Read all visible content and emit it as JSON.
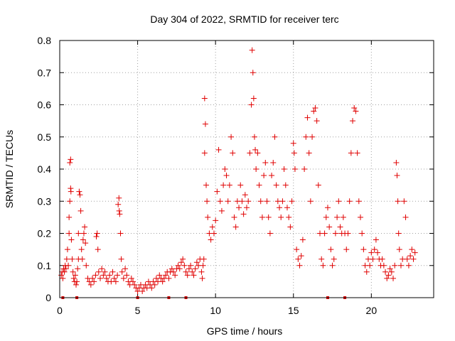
{
  "chart_data": {
    "type": "scatter",
    "title": "Day 304 of 2022, SRMTID for receiver terc",
    "xlabel": "GPS time / hours",
    "ylabel": "SRMTID / TECUs",
    "xlim": [
      0,
      24
    ],
    "ylim": [
      0,
      0.8
    ],
    "xticks": [
      0,
      5,
      10,
      15,
      20
    ],
    "yticks": [
      0,
      0.1,
      0.2,
      0.3,
      0.4,
      0.5,
      0.6,
      0.7,
      0.8
    ],
    "xtick_labels": [
      "0",
      "5",
      "10",
      "15",
      "20"
    ],
    "ytick_labels": [
      "0",
      "0.1",
      "0.2",
      "0.3",
      "0.4",
      "0.5",
      "0.6",
      "0.7",
      "0.8"
    ],
    "grid": true,
    "marker": "+",
    "color": "#e00000",
    "series": [
      {
        "name": "SRMTID",
        "points": [
          [
            0.1,
            0.07
          ],
          [
            0.15,
            0.08
          ],
          [
            0.2,
            0.06
          ],
          [
            0.25,
            0.09
          ],
          [
            0.3,
            0.08
          ],
          [
            0.35,
            0.1
          ],
          [
            0.4,
            0.09
          ],
          [
            0.45,
            0.12
          ],
          [
            0.5,
            0.15
          ],
          [
            0.55,
            0.1
          ],
          [
            0.6,
            0.2
          ],
          [
            0.6,
            0.25
          ],
          [
            0.65,
            0.3
          ],
          [
            0.65,
            0.42
          ],
          [
            0.7,
            0.43
          ],
          [
            0.7,
            0.34
          ],
          [
            0.72,
            0.33
          ],
          [
            0.75,
            0.18
          ],
          [
            0.8,
            0.12
          ],
          [
            0.85,
            0.08
          ],
          [
            0.9,
            0.06
          ],
          [
            0.95,
            0.05
          ],
          [
            1.0,
            0.07
          ],
          [
            1.05,
            0.04
          ],
          [
            1.1,
            0.05
          ],
          [
            1.15,
            0.09
          ],
          [
            1.2,
            0.12
          ],
          [
            1.2,
            0.2
          ],
          [
            1.25,
            0.33
          ],
          [
            1.3,
            0.32
          ],
          [
            1.35,
            0.27
          ],
          [
            1.4,
            0.15
          ],
          [
            1.45,
            0.12
          ],
          [
            1.5,
            0.18
          ],
          [
            1.55,
            0.2
          ],
          [
            1.6,
            0.22
          ],
          [
            1.65,
            0.17
          ],
          [
            1.7,
            0.1
          ],
          [
            1.8,
            0.06
          ],
          [
            1.9,
            0.05
          ],
          [
            2.0,
            0.04
          ],
          [
            2.1,
            0.06
          ],
          [
            2.2,
            0.05
          ],
          [
            2.3,
            0.07
          ],
          [
            2.35,
            0.19
          ],
          [
            2.4,
            0.2
          ],
          [
            2.45,
            0.15
          ],
          [
            2.5,
            0.08
          ],
          [
            2.6,
            0.06
          ],
          [
            2.7,
            0.09
          ],
          [
            2.8,
            0.07
          ],
          [
            2.9,
            0.08
          ],
          [
            3.0,
            0.06
          ],
          [
            3.1,
            0.05
          ],
          [
            3.2,
            0.07
          ],
          [
            3.3,
            0.05
          ],
          [
            3.4,
            0.08
          ],
          [
            3.5,
            0.06
          ],
          [
            3.6,
            0.05
          ],
          [
            3.7,
            0.07
          ],
          [
            3.75,
            0.29
          ],
          [
            3.8,
            0.31
          ],
          [
            3.82,
            0.27
          ],
          [
            3.85,
            0.26
          ],
          [
            3.9,
            0.2
          ],
          [
            3.95,
            0.12
          ],
          [
            4.0,
            0.08
          ],
          [
            4.1,
            0.06
          ],
          [
            4.2,
            0.09
          ],
          [
            4.3,
            0.07
          ],
          [
            4.4,
            0.05
          ],
          [
            4.5,
            0.04
          ],
          [
            4.6,
            0.06
          ],
          [
            4.7,
            0.05
          ],
          [
            4.8,
            0.04
          ],
          [
            4.9,
            0.03
          ],
          [
            5.0,
            0.02
          ],
          [
            5.1,
            0.03
          ],
          [
            5.2,
            0.04
          ],
          [
            5.3,
            0.02
          ],
          [
            5.4,
            0.03
          ],
          [
            5.5,
            0.04
          ],
          [
            5.6,
            0.03
          ],
          [
            5.7,
            0.05
          ],
          [
            5.8,
            0.04
          ],
          [
            5.9,
            0.03
          ],
          [
            6.0,
            0.05
          ],
          [
            6.1,
            0.04
          ],
          [
            6.2,
            0.06
          ],
          [
            6.3,
            0.05
          ],
          [
            6.4,
            0.07
          ],
          [
            6.5,
            0.06
          ],
          [
            6.6,
            0.05
          ],
          [
            6.7,
            0.06
          ],
          [
            6.8,
            0.07
          ],
          [
            6.9,
            0.08
          ],
          [
            7.0,
            0.06
          ],
          [
            7.1,
            0.08
          ],
          [
            7.2,
            0.09
          ],
          [
            7.3,
            0.08
          ],
          [
            7.4,
            0.07
          ],
          [
            7.5,
            0.09
          ],
          [
            7.6,
            0.1
          ],
          [
            7.7,
            0.09
          ],
          [
            7.8,
            0.11
          ],
          [
            7.9,
            0.12
          ],
          [
            8.0,
            0.1
          ],
          [
            8.1,
            0.08
          ],
          [
            8.2,
            0.07
          ],
          [
            8.3,
            0.09
          ],
          [
            8.4,
            0.1
          ],
          [
            8.5,
            0.08
          ],
          [
            8.6,
            0.07
          ],
          [
            8.7,
            0.09
          ],
          [
            8.8,
            0.11
          ],
          [
            8.9,
            0.1
          ],
          [
            9.0,
            0.12
          ],
          [
            9.1,
            0.08
          ],
          [
            9.15,
            0.06
          ],
          [
            9.2,
            0.1
          ],
          [
            9.25,
            0.12
          ],
          [
            9.3,
            0.45
          ],
          [
            9.3,
            0.62
          ],
          [
            9.35,
            0.54
          ],
          [
            9.4,
            0.35
          ],
          [
            9.45,
            0.3
          ],
          [
            9.5,
            0.25
          ],
          [
            9.6,
            0.2
          ],
          [
            9.7,
            0.18
          ],
          [
            9.8,
            0.22
          ],
          [
            9.9,
            0.2
          ],
          [
            10.0,
            0.24
          ],
          [
            10.1,
            0.33
          ],
          [
            10.2,
            0.46
          ],
          [
            10.3,
            0.3
          ],
          [
            10.4,
            0.27
          ],
          [
            10.5,
            0.35
          ],
          [
            10.6,
            0.4
          ],
          [
            10.7,
            0.38
          ],
          [
            10.8,
            0.3
          ],
          [
            10.9,
            0.35
          ],
          [
            11.0,
            0.5
          ],
          [
            11.1,
            0.45
          ],
          [
            11.2,
            0.25
          ],
          [
            11.3,
            0.22
          ],
          [
            11.4,
            0.3
          ],
          [
            11.5,
            0.28
          ],
          [
            11.6,
            0.35
          ],
          [
            11.7,
            0.3
          ],
          [
            11.8,
            0.26
          ],
          [
            11.9,
            0.32
          ],
          [
            12.0,
            0.28
          ],
          [
            12.1,
            0.3
          ],
          [
            12.2,
            0.45
          ],
          [
            12.3,
            0.6
          ],
          [
            12.35,
            0.77
          ],
          [
            12.4,
            0.7
          ],
          [
            12.45,
            0.62
          ],
          [
            12.5,
            0.5
          ],
          [
            12.55,
            0.46
          ],
          [
            12.6,
            0.4
          ],
          [
            12.7,
            0.45
          ],
          [
            12.8,
            0.35
          ],
          [
            12.9,
            0.3
          ],
          [
            13.0,
            0.25
          ],
          [
            13.1,
            0.38
          ],
          [
            13.2,
            0.42
          ],
          [
            13.3,
            0.3
          ],
          [
            13.4,
            0.25
          ],
          [
            13.5,
            0.2
          ],
          [
            13.6,
            0.38
          ],
          [
            13.7,
            0.42
          ],
          [
            13.8,
            0.5
          ],
          [
            13.9,
            0.35
          ],
          [
            14.0,
            0.3
          ],
          [
            14.1,
            0.28
          ],
          [
            14.2,
            0.25
          ],
          [
            14.3,
            0.3
          ],
          [
            14.4,
            0.4
          ],
          [
            14.5,
            0.35
          ],
          [
            14.6,
            0.28
          ],
          [
            14.7,
            0.25
          ],
          [
            14.8,
            0.22
          ],
          [
            14.9,
            0.3
          ],
          [
            15.0,
            0.48
          ],
          [
            15.05,
            0.45
          ],
          [
            15.1,
            0.4
          ],
          [
            15.2,
            0.15
          ],
          [
            15.3,
            0.12
          ],
          [
            15.4,
            0.1
          ],
          [
            15.5,
            0.13
          ],
          [
            15.6,
            0.18
          ],
          [
            15.7,
            0.4
          ],
          [
            15.8,
            0.5
          ],
          [
            15.9,
            0.56
          ],
          [
            16.0,
            0.45
          ],
          [
            16.1,
            0.3
          ],
          [
            16.2,
            0.5
          ],
          [
            16.3,
            0.58
          ],
          [
            16.4,
            0.59
          ],
          [
            16.5,
            0.55
          ],
          [
            16.6,
            0.35
          ],
          [
            16.7,
            0.2
          ],
          [
            16.8,
            0.12
          ],
          [
            16.9,
            0.1
          ],
          [
            17.0,
            0.2
          ],
          [
            17.1,
            0.25
          ],
          [
            17.2,
            0.28
          ],
          [
            17.3,
            0.22
          ],
          [
            17.4,
            0.15
          ],
          [
            17.5,
            0.1
          ],
          [
            17.6,
            0.12
          ],
          [
            17.7,
            0.2
          ],
          [
            17.8,
            0.25
          ],
          [
            17.9,
            0.3
          ],
          [
            18.0,
            0.22
          ],
          [
            18.1,
            0.2
          ],
          [
            18.2,
            0.25
          ],
          [
            18.3,
            0.2
          ],
          [
            18.4,
            0.15
          ],
          [
            18.5,
            0.2
          ],
          [
            18.6,
            0.3
          ],
          [
            18.7,
            0.45
          ],
          [
            18.8,
            0.55
          ],
          [
            18.9,
            0.59
          ],
          [
            19.0,
            0.58
          ],
          [
            19.1,
            0.45
          ],
          [
            19.2,
            0.3
          ],
          [
            19.3,
            0.25
          ],
          [
            19.4,
            0.2
          ],
          [
            19.5,
            0.15
          ],
          [
            19.6,
            0.1
          ],
          [
            19.7,
            0.08
          ],
          [
            19.8,
            0.12
          ],
          [
            19.9,
            0.1
          ],
          [
            20.0,
            0.14
          ],
          [
            20.1,
            0.12
          ],
          [
            20.2,
            0.15
          ],
          [
            20.3,
            0.18
          ],
          [
            20.4,
            0.14
          ],
          [
            20.5,
            0.12
          ],
          [
            20.6,
            0.1
          ],
          [
            20.7,
            0.12
          ],
          [
            20.8,
            0.1
          ],
          [
            20.9,
            0.08
          ],
          [
            21.0,
            0.06
          ],
          [
            21.1,
            0.07
          ],
          [
            21.2,
            0.09
          ],
          [
            21.3,
            0.08
          ],
          [
            21.4,
            0.06
          ],
          [
            21.5,
            0.1
          ],
          [
            21.6,
            0.42
          ],
          [
            21.65,
            0.38
          ],
          [
            21.7,
            0.3
          ],
          [
            21.75,
            0.2
          ],
          [
            21.8,
            0.15
          ],
          [
            21.9,
            0.1
          ],
          [
            22.0,
            0.12
          ],
          [
            22.1,
            0.3
          ],
          [
            22.2,
            0.25
          ],
          [
            22.3,
            0.12
          ],
          [
            22.4,
            0.1
          ],
          [
            22.5,
            0.13
          ],
          [
            22.6,
            0.15
          ],
          [
            22.7,
            0.12
          ],
          [
            22.8,
            0.14
          ]
        ]
      }
    ],
    "baseline_markers_x": [
      0.2,
      1.1,
      5.0,
      7.0,
      8.1,
      17.2,
      18.3
    ]
  }
}
